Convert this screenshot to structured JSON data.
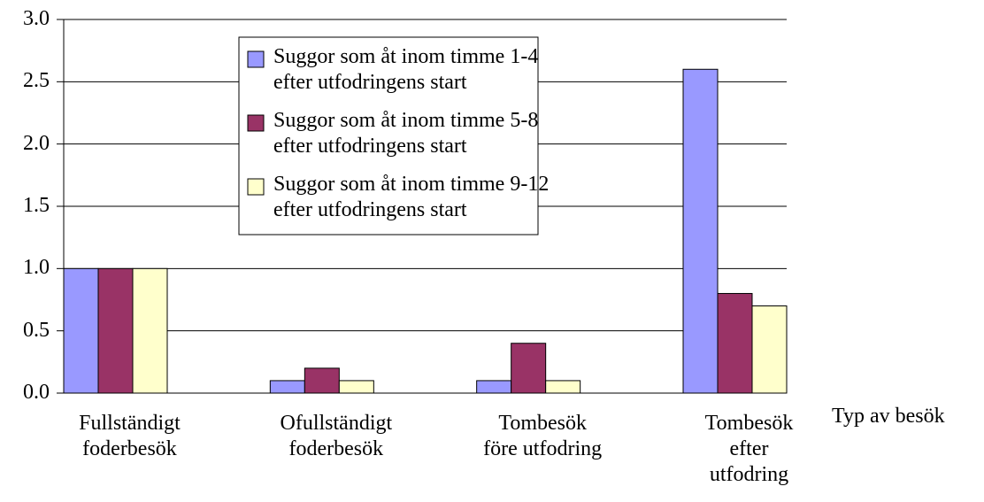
{
  "chart_data": {
    "type": "bar",
    "x_label": "Typ av besök",
    "categories": [
      "Fullständigt\nfoderbesök",
      "Ofullständigt\nfoderbesök",
      "Tombesök\nföre utfodring",
      "Tombesök\nefter\nutfodring"
    ],
    "series": [
      {
        "name": "Suggor som åt inom timme 1-4\nefter utfodringens start",
        "color": "#9999ff",
        "values": [
          1.0,
          0.1,
          0.1,
          2.6
        ]
      },
      {
        "name": "Suggor som åt inom timme 5-8\nefter utfodringens start",
        "color": "#993366",
        "values": [
          1.0,
          0.2,
          0.4,
          0.8
        ]
      },
      {
        "name": "Suggor som åt inom timme 9-12\nefter utfodringens start",
        "color": "#ffffcc",
        "values": [
          1.0,
          0.1,
          0.1,
          0.7
        ]
      }
    ],
    "ylim": [
      0,
      3
    ],
    "yticks": [
      {
        "value": 0,
        "label": "0.0"
      },
      {
        "value": 0.5,
        "label": "0.5"
      },
      {
        "value": 1,
        "label": "1.0"
      },
      {
        "value": 1.5,
        "label": "1.5"
      },
      {
        "value": 2,
        "label": "2.0"
      },
      {
        "value": 2.5,
        "label": "2.5"
      },
      {
        "value": 3,
        "label": "3.0"
      }
    ],
    "grid": true
  }
}
